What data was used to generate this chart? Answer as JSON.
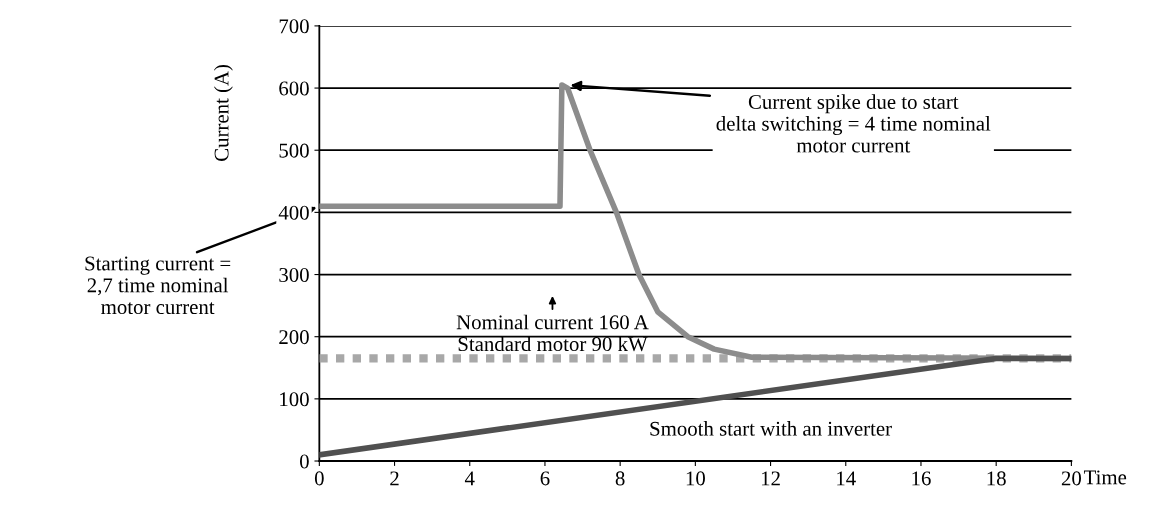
{
  "chart_data": {
    "type": "line",
    "ylabel": "Current (A)",
    "xlabel": "Time",
    "xlim": [
      0,
      20
    ],
    "xticks": [
      0,
      2,
      4,
      6,
      8,
      10,
      12,
      14,
      16,
      18,
      20
    ],
    "ylim": [
      0,
      700
    ],
    "yticks": [
      0,
      100,
      200,
      300,
      400,
      500,
      600,
      700
    ],
    "grid": "y",
    "legend": false,
    "marker": "none",
    "series": [
      {
        "color": "#a8a8a8",
        "line_style": "dotted",
        "x": [
          0,
          20
        ],
        "values": [
          165,
          165
        ]
      },
      {
        "color": "#8c8c8c",
        "line_style": "solid",
        "x": [
          0,
          6.4,
          6.45,
          6.6,
          7.2,
          7.9,
          8.5,
          9.0,
          9.8,
          10.5,
          11.5,
          20
        ],
        "values": [
          410,
          410,
          605,
          600,
          500,
          400,
          300,
          240,
          200,
          180,
          167,
          165
        ]
      },
      {
        "color": "#505050",
        "line_style": "solid",
        "x": [
          0,
          18,
          20
        ],
        "values": [
          10,
          165,
          165
        ]
      }
    ],
    "annotations": [
      {
        "text": "Current spike due to start\ndelta switching = 4 time nominal\nmotor current",
        "x": 6.6,
        "y": 605
      },
      {
        "text": "Starting current =\n2,7 time nominal\nmotor current",
        "x": 0,
        "y": 410
      },
      {
        "text": "Nominal current 160 A\nStandard motor 90 kW",
        "x": 6.2,
        "y": 165
      },
      "Smooth start with an inverter"
    ]
  }
}
